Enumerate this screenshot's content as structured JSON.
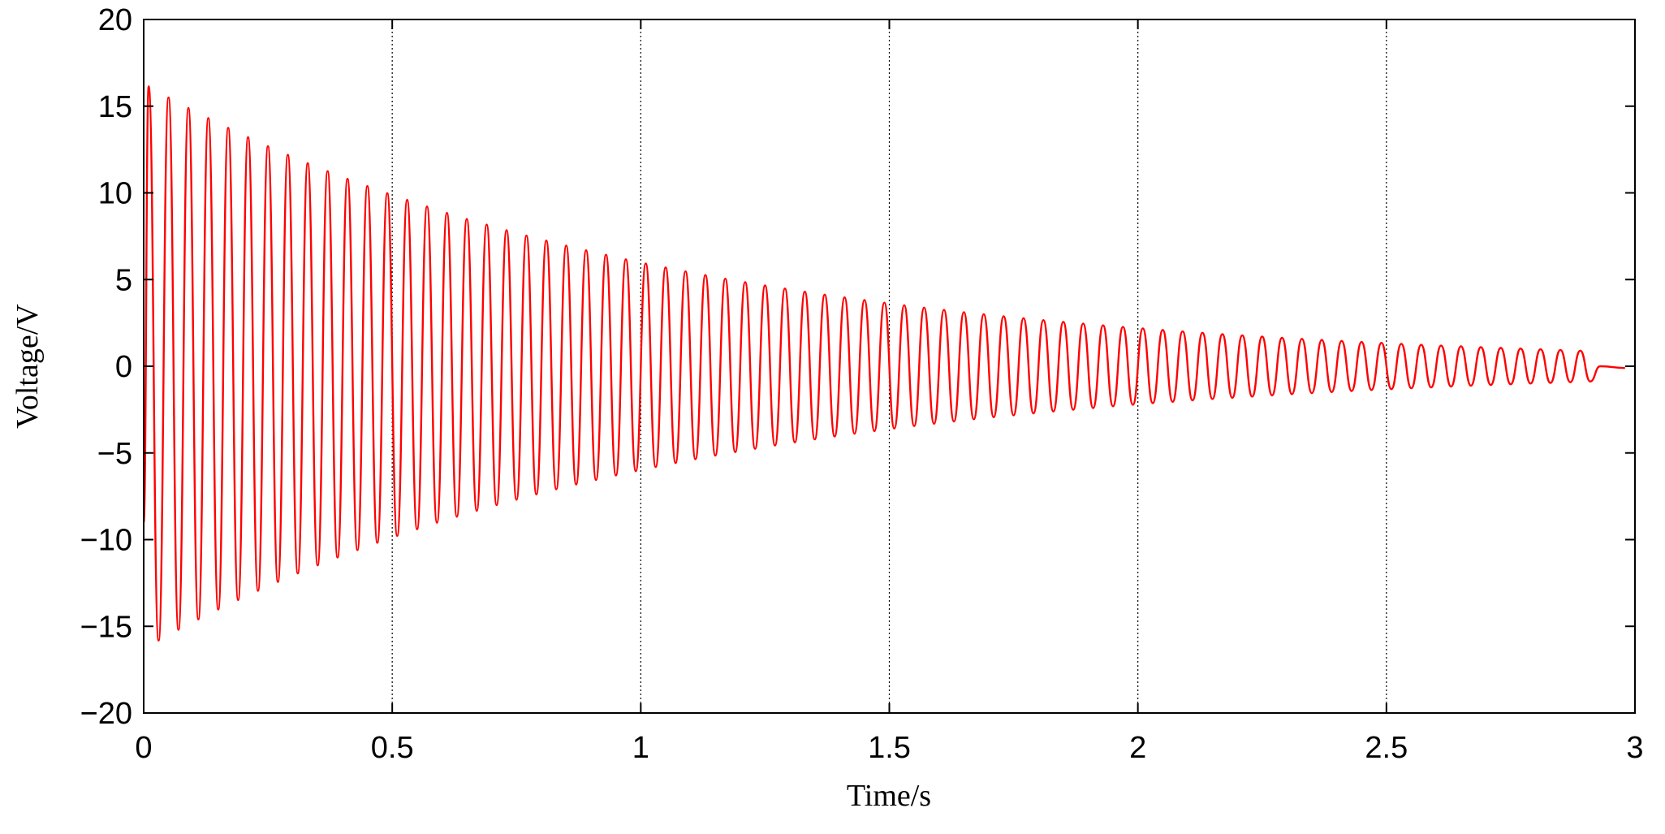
{
  "chart_data": {
    "type": "line",
    "xlabel": "Time/s",
    "ylabel": "Voltage/V",
    "xlim": [
      0,
      3
    ],
    "xticks": [
      0,
      0.5,
      1,
      1.5,
      2,
      2.5,
      3
    ],
    "ylim": [
      -20,
      20
    ],
    "yticks": [
      {
        "value": -20,
        "label": "−20"
      },
      {
        "value": -15,
        "label": "−15"
      },
      {
        "value": -10,
        "label": "−10"
      },
      {
        "value": -5,
        "label": "−5"
      },
      0,
      5,
      10,
      15,
      20
    ],
    "grid": "x",
    "x": [
      0,
      0.01,
      0.03,
      0.05,
      0.07,
      0.09,
      0.11,
      0.13,
      0.15,
      0.17,
      0.19,
      0.21,
      0.23,
      0.25,
      0.27,
      0.29,
      0.31,
      0.33,
      0.35,
      0.37,
      0.39,
      0.41,
      0.43,
      0.45,
      0.47,
      0.49,
      0.51,
      0.53,
      0.55,
      0.57,
      0.59,
      0.61,
      0.63,
      0.65,
      0.67,
      0.69,
      0.71,
      0.73,
      0.75,
      0.77,
      0.79,
      0.81,
      0.83,
      0.85,
      0.87,
      0.89,
      0.91,
      0.93,
      0.95,
      0.97,
      0.99,
      1.01,
      1.03,
      1.05,
      1.07,
      1.09,
      1.11,
      1.13,
      1.15,
      1.17,
      1.19,
      1.21,
      1.23,
      1.25,
      1.27,
      1.29,
      1.31,
      1.33,
      1.35,
      1.37,
      1.39,
      1.41,
      1.43,
      1.45,
      1.47,
      1.49,
      1.51,
      1.53,
      1.55,
      1.57,
      1.59,
      1.61,
      1.63,
      1.65,
      1.67,
      1.69,
      1.71,
      1.73,
      1.75,
      1.77,
      1.79,
      1.81,
      1.83,
      1.85,
      1.87,
      1.89,
      1.91,
      1.93,
      1.95,
      1.97,
      1.99,
      2.01,
      2.03,
      2.05,
      2.07,
      2.09,
      2.11,
      2.13,
      2.15,
      2.17,
      2.19,
      2.21,
      2.23,
      2.25,
      2.27,
      2.29,
      2.31,
      2.33,
      2.35,
      2.37,
      2.39,
      2.41,
      2.43,
      2.45,
      2.47,
      2.49,
      2.51,
      2.53,
      2.55,
      2.57,
      2.59,
      2.61,
      2.63,
      2.65,
      2.67,
      2.69,
      2.71,
      2.73,
      2.75,
      2.77,
      2.79,
      2.81,
      2.83,
      2.85,
      2.87,
      2.89,
      2.91,
      2.93,
      2.98
    ],
    "series": [
      {
        "color": "#ff0000",
        "values": [
          -9,
          16.14,
          -15.82,
          15.5,
          -15.2,
          14.89,
          -14.6,
          14.31,
          -14.03,
          13.75,
          -13.48,
          13.21,
          -12.95,
          12.69,
          -12.44,
          12.19,
          -11.95,
          11.71,
          -11.48,
          11.25,
          -11.03,
          10.81,
          -10.6,
          10.39,
          -10.18,
          9.98,
          -9.78,
          9.59,
          -9.4,
          9.21,
          -9.03,
          8.85,
          -8.68,
          8.5,
          -8.34,
          8.17,
          -8.01,
          7.85,
          -7.7,
          7.54,
          -7.39,
          7.25,
          -7.1,
          6.96,
          -6.82,
          6.69,
          -6.56,
          6.43,
          -6.3,
          6.17,
          -6.05,
          5.93,
          -5.81,
          5.7,
          -5.58,
          5.47,
          -5.36,
          5.26,
          -5.15,
          5.05,
          -4.95,
          4.85,
          -4.76,
          4.66,
          -4.57,
          4.48,
          -4.39,
          4.3,
          -4.22,
          4.13,
          -4.05,
          3.97,
          -3.89,
          3.82,
          -3.74,
          3.67,
          -3.59,
          3.52,
          -3.45,
          3.38,
          -3.32,
          3.25,
          -3.19,
          3.12,
          -3.06,
          3.0,
          -2.94,
          2.88,
          -2.83,
          2.77,
          -2.72,
          2.66,
          -2.61,
          2.56,
          -2.51,
          2.46,
          -2.41,
          2.36,
          -2.31,
          2.27,
          -2.22,
          2.18,
          -2.13,
          2.09,
          -2.05,
          2.01,
          -1.97,
          1.93,
          -1.89,
          1.85,
          -1.82,
          1.78,
          -1.75,
          1.71,
          -1.68,
          1.64,
          -1.61,
          1.58,
          -1.55,
          1.52,
          -1.49,
          1.46,
          -1.43,
          1.4,
          -1.37,
          1.35,
          -1.32,
          1.29,
          -1.27,
          1.24,
          -1.22,
          1.19,
          -1.17,
          1.15,
          -1.12,
          1.1,
          -1.08,
          1.06,
          -1.04,
          1.02,
          -1.0,
          0.98,
          -0.96,
          0.94,
          -0.92,
          0.9,
          -0.88,
          0,
          -0.1
        ]
      }
    ]
  }
}
